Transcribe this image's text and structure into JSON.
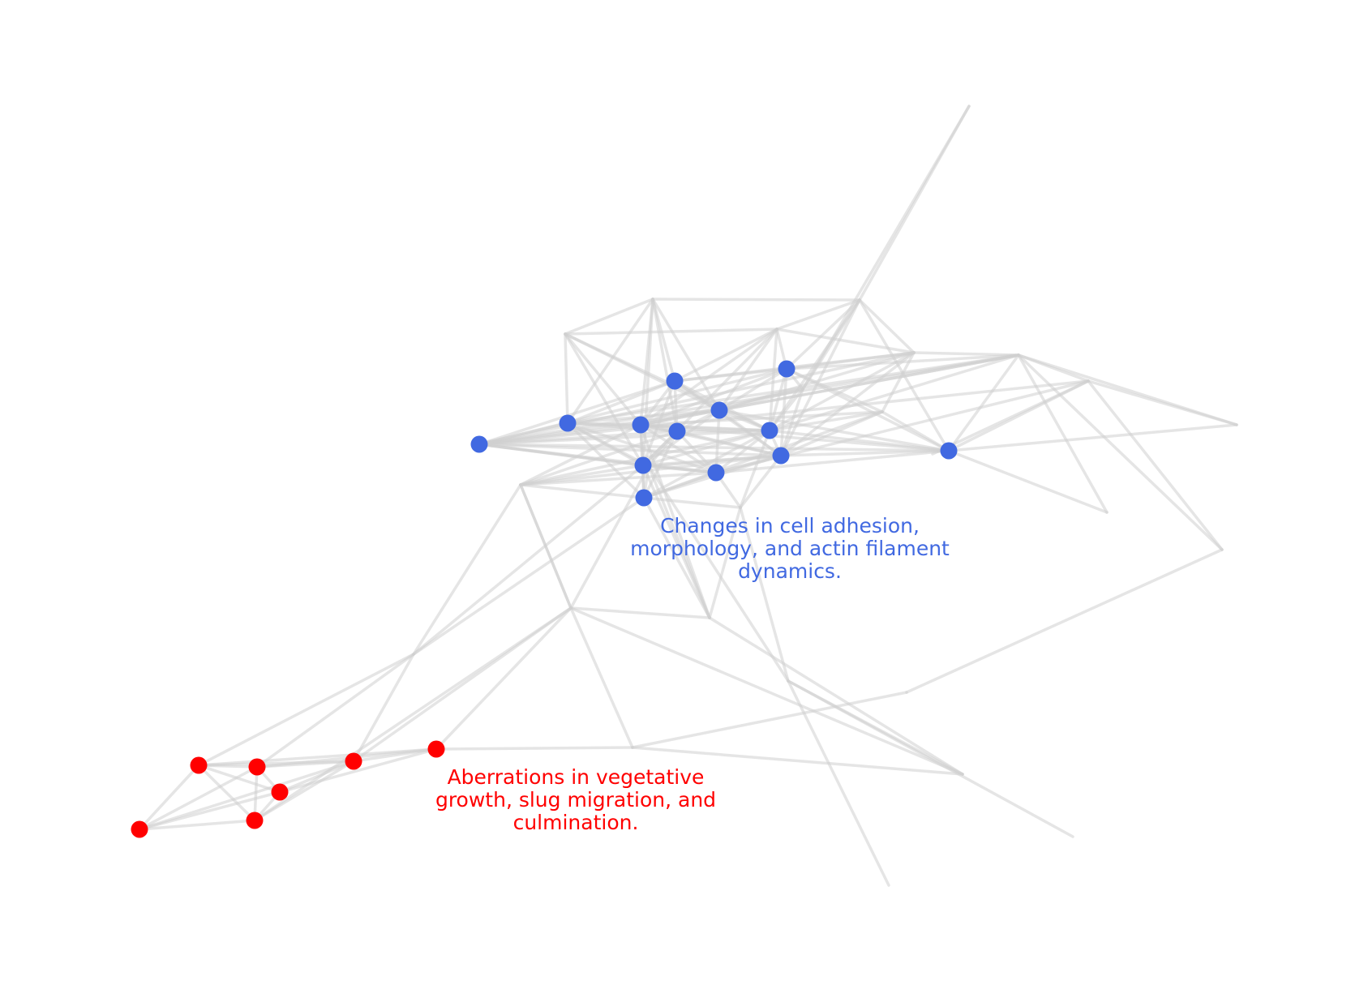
{
  "clusters": [
    {
      "color": "#4169e1",
      "label_lines": [
        "Changes in cell adhesion,",
        "morphology, and actin filament",
        "dynamics."
      ]
    },
    {
      "color": "#ff0000",
      "label_lines": [
        "Aberrations in vegetative",
        "growth, slug migration, and",
        "culmination."
      ]
    }
  ],
  "edge_color": "#d0d0d0"
}
